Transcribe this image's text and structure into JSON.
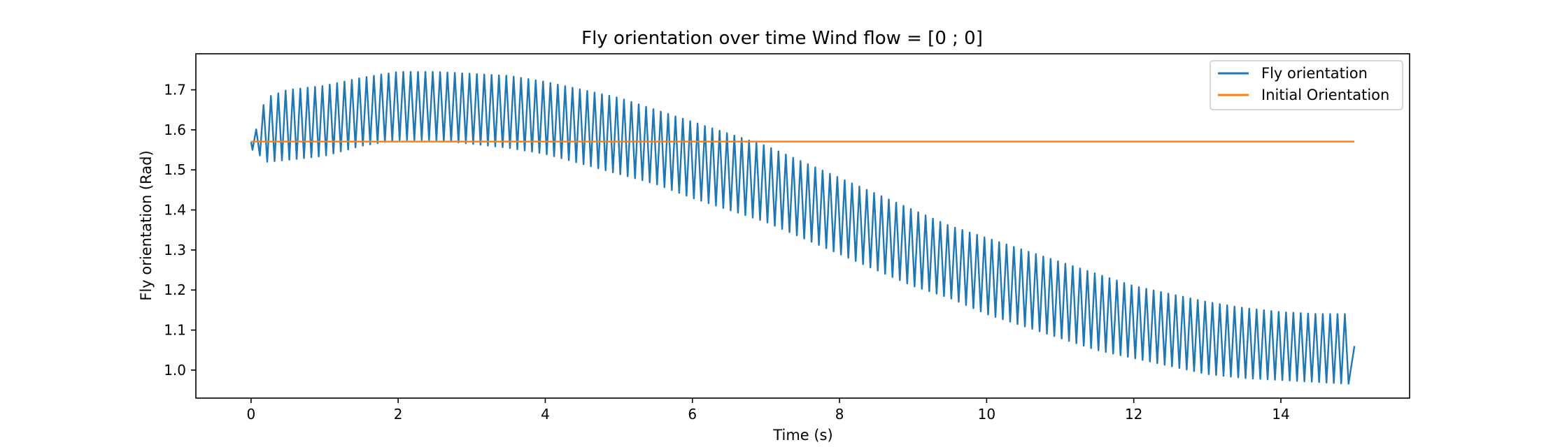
{
  "chart_data": {
    "type": "line",
    "title": "Fly orientation over time Wind flow = [0 ; 0]",
    "xlabel": "Time (s)",
    "ylabel": "Fly orientation (Rad)",
    "xlim": [
      -0.75,
      15.75
    ],
    "ylim": [
      0.93,
      1.79
    ],
    "xticks": [
      0,
      2,
      4,
      6,
      8,
      10,
      12,
      14
    ],
    "yticks": [
      1.0,
      1.1,
      1.2,
      1.3,
      1.4,
      1.5,
      1.6,
      1.7
    ],
    "grid": false,
    "legend_position": "top-right",
    "series": [
      {
        "name": "Fly orientation",
        "color": "#1f77b4",
        "x_start": 0,
        "x_end": 15,
        "oscillation_period_s": 0.1,
        "start_value": 1.57,
        "end_value": 1.06,
        "upper_envelope": {
          "x": [
            0.02,
            0.1,
            0.2,
            0.5,
            1.0,
            1.5,
            2.0,
            2.5,
            3.0,
            3.5,
            4.0,
            4.5,
            5.0,
            5.5,
            6.0,
            6.5,
            7.0,
            7.5,
            8.0,
            8.5,
            9.0,
            9.5,
            10.0,
            10.5,
            11.0,
            11.5,
            12.0,
            12.5,
            13.0,
            13.5,
            14.0,
            14.5,
            15.0
          ],
          "y": [
            1.57,
            1.62,
            1.68,
            1.7,
            1.71,
            1.73,
            1.745,
            1.745,
            1.74,
            1.735,
            1.72,
            1.7,
            1.68,
            1.65,
            1.62,
            1.59,
            1.56,
            1.52,
            1.48,
            1.44,
            1.4,
            1.36,
            1.33,
            1.3,
            1.27,
            1.24,
            1.21,
            1.19,
            1.17,
            1.155,
            1.145,
            1.14,
            1.14
          ]
        },
        "lower_envelope": {
          "x": [
            0.02,
            0.1,
            0.2,
            0.5,
            1.0,
            1.5,
            2.0,
            2.5,
            3.0,
            3.5,
            4.0,
            4.5,
            5.0,
            5.5,
            6.0,
            6.5,
            7.0,
            7.5,
            8.0,
            8.5,
            9.0,
            9.5,
            10.0,
            10.5,
            11.0,
            11.5,
            12.0,
            12.5,
            13.0,
            13.5,
            14.0,
            14.5,
            15.0
          ],
          "y": [
            1.55,
            1.54,
            1.52,
            1.525,
            1.535,
            1.56,
            1.575,
            1.575,
            1.565,
            1.555,
            1.54,
            1.515,
            1.49,
            1.465,
            1.43,
            1.4,
            1.37,
            1.33,
            1.29,
            1.25,
            1.21,
            1.18,
            1.14,
            1.11,
            1.08,
            1.05,
            1.03,
            1.01,
            0.99,
            0.98,
            0.975,
            0.97,
            0.965
          ]
        }
      },
      {
        "name": "Initial Orientation",
        "color": "#ff7f0e",
        "x": [
          0,
          15
        ],
        "y": [
          1.5708,
          1.5708
        ]
      }
    ]
  }
}
